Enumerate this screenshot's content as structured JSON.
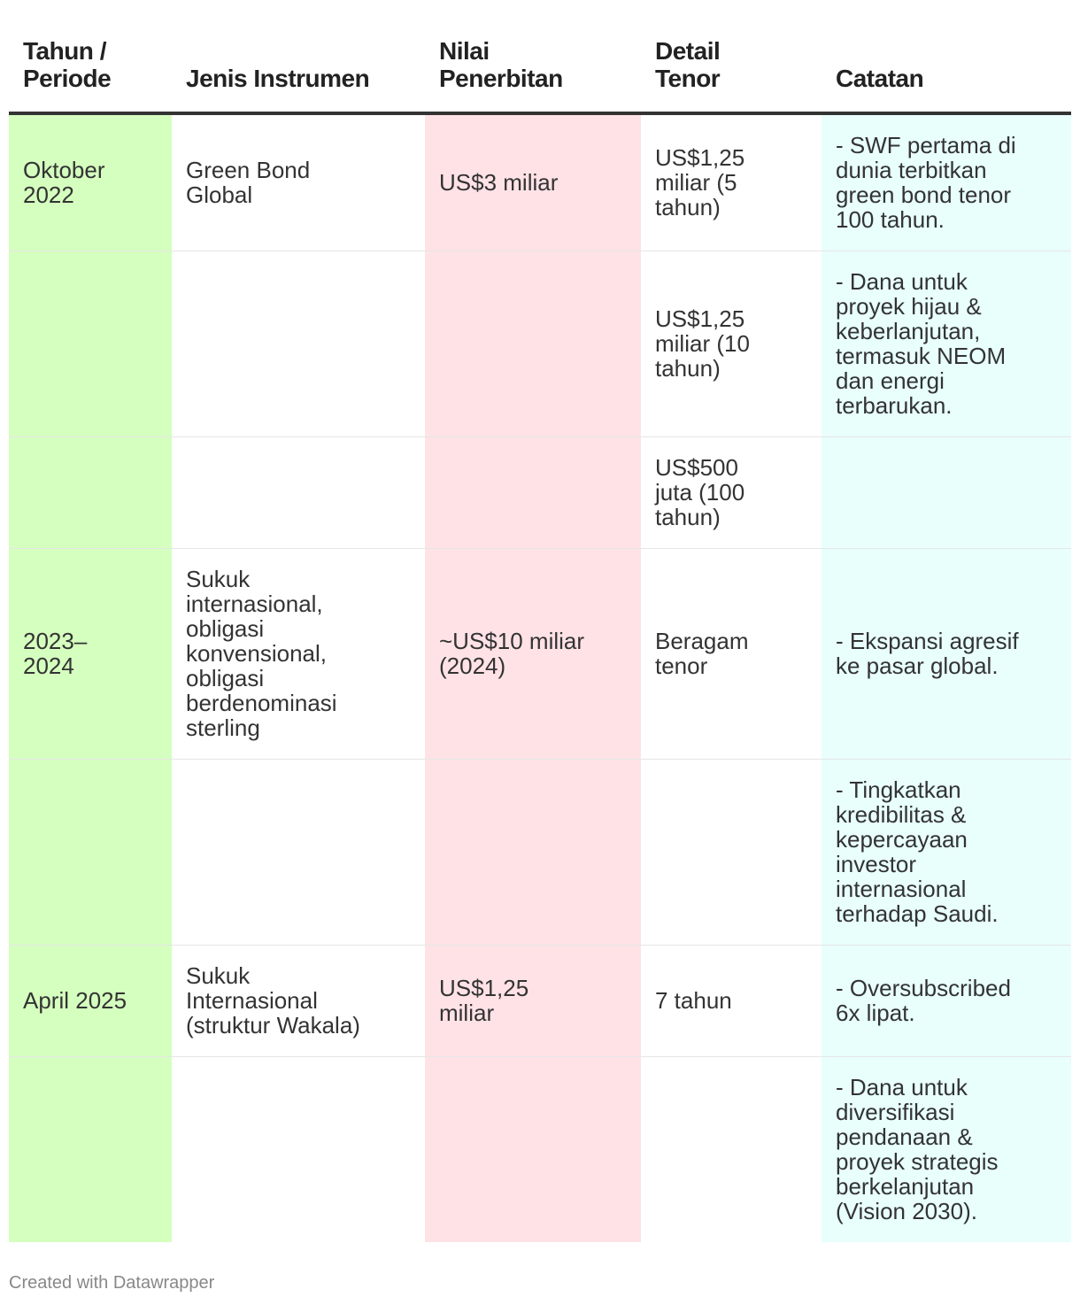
{
  "chart_data": {
    "type": "table",
    "columns": [
      "Tahun /\nPeriode",
      "Jenis Instrumen",
      "Nilai\nPenerbitan",
      "Detail\nTenor",
      "Catatan"
    ],
    "rows": [
      [
        "Oktober\n2022",
        "Green Bond\nGlobal",
        "US$3 miliar",
        "US$1,25\nmiliar (5\ntahun)",
        "- SWF pertama di\ndunia terbitkan\ngreen bond tenor\n100 tahun."
      ],
      [
        "",
        "",
        "",
        "US$1,25\nmiliar (10\ntahun)",
        "- Dana untuk\nproyek hijau &\nkeberlanjutan,\ntermasuk NEOM\ndan energi\nterbarukan."
      ],
      [
        "",
        "",
        "",
        "US$500\njuta (100\ntahun)",
        ""
      ],
      [
        "2023–\n2024",
        "Sukuk\ninternasional,\nobligasi\nkonvensional,\nobligasi\nberdenominasi\nsterling",
        "~US$10 miliar\n(2024)",
        "Beragam\ntenor",
        "- Ekspansi agresif\nke pasar global."
      ],
      [
        "",
        "",
        "",
        "",
        "- Tingkatkan\nkredibilitas &\nkepercayaan\ninvestor\ninternasional\nterhadap Saudi."
      ],
      [
        "April 2025",
        "Sukuk\nInternasional\n(struktur Wakala)",
        "US$1,25\nmiliar",
        "7 tahun",
        "- Oversubscribed\n6x lipat."
      ],
      [
        "",
        "",
        "",
        "",
        "- Dana untuk\ndiversifikasi\npendanaan &\nproyek strategis\nberkelanjutan\n(Vision 2030)."
      ]
    ],
    "column_colors": [
      "#d5ffbf",
      "#ffffff",
      "#ffe2e6",
      "#ffffff",
      "#e8fffc"
    ]
  },
  "credit": "Created with Datawrapper"
}
